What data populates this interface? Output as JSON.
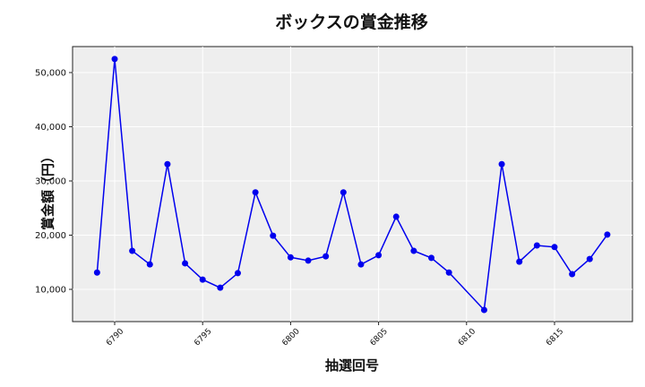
{
  "chart_data": {
    "type": "line",
    "title": "ボックスの賞金推移",
    "xlabel": "抽選回号",
    "ylabel": "賞金額（円）",
    "x": [
      6789,
      6790,
      6791,
      6792,
      6793,
      6794,
      6795,
      6796,
      6797,
      6798,
      6799,
      6800,
      6801,
      6802,
      6803,
      6804,
      6805,
      6806,
      6807,
      6808,
      6809,
      6811,
      6812,
      6813,
      6814,
      6815,
      6816,
      6817,
      6818
    ],
    "series": [
      {
        "name": "ボックス",
        "color": "#0000ee",
        "values": [
          13100,
          52500,
          17100,
          14600,
          33100,
          14800,
          11800,
          10300,
          13000,
          27900,
          19900,
          15900,
          15300,
          16100,
          27900,
          14600,
          16300,
          23400,
          17100,
          15800,
          13100,
          6200,
          33100,
          15100,
          18100,
          17800,
          12800,
          15600,
          20100
        ]
      }
    ],
    "xticks": [
      6790,
      6795,
      6800,
      6805,
      6810,
      6815
    ],
    "yticks": [
      10000,
      20000,
      30000,
      40000,
      50000
    ],
    "ytick_labels": [
      "10,000",
      "20,000",
      "30,000",
      "40,000",
      "50,000"
    ],
    "xlim": [
      6787.9,
      6819.7
    ],
    "ylim": [
      3950,
      55000
    ],
    "grid": true,
    "legend": "none",
    "background": "#eeeeee"
  }
}
